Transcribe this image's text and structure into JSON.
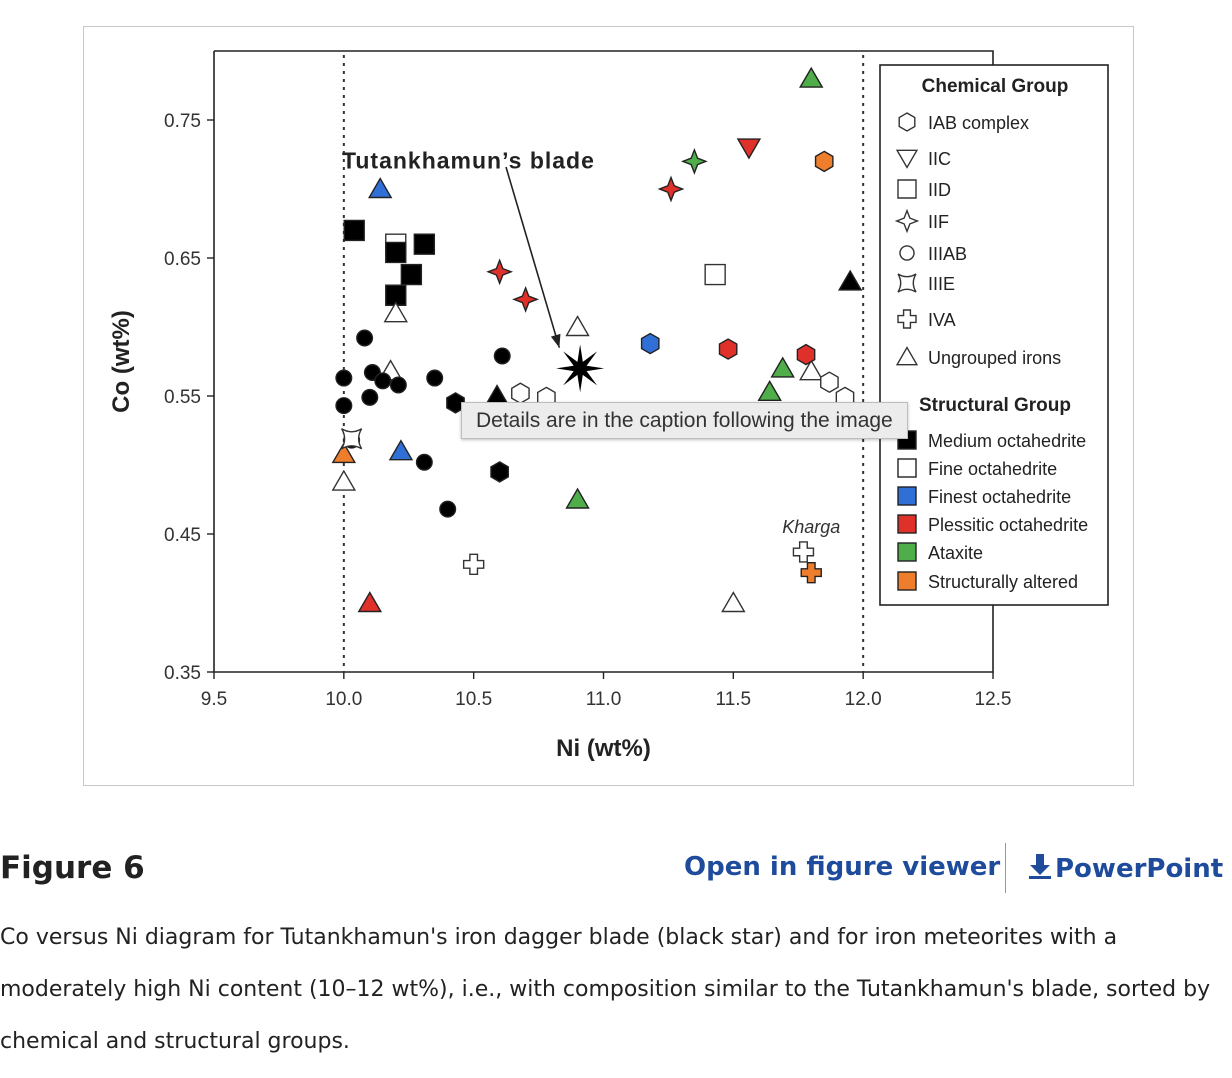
{
  "figure": {
    "label": "Figure 6",
    "open_viewer": "Open in figure viewer",
    "powerpoint": "PowerPoint",
    "caption": "Co versus Ni diagram for Tutankhamun's iron dagger blade (black star) and for iron meteorites with a moderately high Ni content (10–12 wt%), i.e., with composition similar to the Tutankhamun's blade, sorted by chemical and structural groups.",
    "tooltip": "Details are in the caption following the image"
  },
  "colors": {
    "medium": "#000000",
    "fine": "#ffffff",
    "finest": "#2f6fd6",
    "plessitic": "#e0302a",
    "ataxite": "#4fae4a",
    "altered": "#ee7d2c",
    "link": "#1e4b9b"
  },
  "chart_data": {
    "type": "scatter",
    "xlabel": "Ni (wt%)",
    "ylabel": "Co (wt%)",
    "xlim": [
      9.5,
      12.5
    ],
    "ylim": [
      0.35,
      0.8
    ],
    "xticks": [
      "9.5",
      "10.0",
      "10.5",
      "11.0",
      "11.5",
      "12.0",
      "12.5"
    ],
    "yticks": [
      "0.35",
      "0.45",
      "0.55",
      "0.65",
      "0.75"
    ],
    "vlines": [
      10.0,
      12.0
    ],
    "annotations": [
      {
        "text": "Tutankhamun’s blade",
        "x": 10.48,
        "y": 0.72,
        "arrow_to": [
          10.83,
          0.585
        ]
      },
      {
        "text": "Kharga",
        "x": 11.8,
        "y": 0.455
      }
    ],
    "legend_placement": "right",
    "legend_chemical_title": "Chemical Group",
    "legend_chemical": [
      {
        "label": "IAB complex",
        "shape": "hexagon"
      },
      {
        "label": "IIC",
        "shape": "triangle-down"
      },
      {
        "label": "IID",
        "shape": "square"
      },
      {
        "label": "IIF",
        "shape": "star4"
      },
      {
        "label": "IIIAB",
        "shape": "circle"
      },
      {
        "label": "IIIE",
        "shape": "iiie"
      },
      {
        "label": "IVA",
        "shape": "cross"
      },
      {
        "label": "Ungrouped irons",
        "shape": "triangle-up"
      }
    ],
    "legend_structural_title": "Structural Group",
    "legend_structural": [
      {
        "label": "Medium octahedrite",
        "group": "medium"
      },
      {
        "label": "Fine octahedrite",
        "group": "fine"
      },
      {
        "label": "Finest octahedrite",
        "group": "finest"
      },
      {
        "label": "Plessitic octahedrite",
        "group": "plessitic"
      },
      {
        "label": "Ataxite",
        "group": "ataxite"
      },
      {
        "label": "Structurally altered",
        "group": "altered"
      }
    ],
    "blade": {
      "x": 10.91,
      "y": 0.57
    },
    "points": [
      {
        "x": 10.04,
        "y": 0.67,
        "shape": "square",
        "group": "medium"
      },
      {
        "x": 10.2,
        "y": 0.66,
        "shape": "square",
        "group": "fine"
      },
      {
        "x": 10.31,
        "y": 0.66,
        "shape": "square",
        "group": "medium"
      },
      {
        "x": 10.2,
        "y": 0.654,
        "shape": "square",
        "group": "medium"
      },
      {
        "x": 10.26,
        "y": 0.638,
        "shape": "square",
        "group": "medium"
      },
      {
        "x": 10.2,
        "y": 0.623,
        "shape": "square",
        "group": "medium"
      },
      {
        "x": 11.43,
        "y": 0.638,
        "shape": "square",
        "group": "fine"
      },
      {
        "x": 10.14,
        "y": 0.7,
        "shape": "triangle-up",
        "group": "finest"
      },
      {
        "x": 10.2,
        "y": 0.61,
        "shape": "triangle-up",
        "group": "fine"
      },
      {
        "x": 10.18,
        "y": 0.568,
        "shape": "triangle-up",
        "group": "fine"
      },
      {
        "x": 10.9,
        "y": 0.6,
        "shape": "triangle-up",
        "group": "fine"
      },
      {
        "x": 11.8,
        "y": 0.78,
        "shape": "triangle-up",
        "group": "ataxite"
      },
      {
        "x": 11.95,
        "y": 0.633,
        "shape": "triangle-up",
        "group": "medium"
      },
      {
        "x": 10.59,
        "y": 0.55,
        "shape": "triangle-up",
        "group": "medium"
      },
      {
        "x": 10.22,
        "y": 0.51,
        "shape": "triangle-up",
        "group": "finest"
      },
      {
        "x": 10.0,
        "y": 0.488,
        "shape": "triangle-up",
        "group": "fine"
      },
      {
        "x": 10.0,
        "y": 0.508,
        "shape": "triangle-up",
        "group": "altered"
      },
      {
        "x": 10.9,
        "y": 0.475,
        "shape": "triangle-up",
        "group": "ataxite"
      },
      {
        "x": 10.1,
        "y": 0.4,
        "shape": "triangle-up",
        "group": "plessitic"
      },
      {
        "x": 11.5,
        "y": 0.4,
        "shape": "triangle-up",
        "group": "fine"
      },
      {
        "x": 11.69,
        "y": 0.57,
        "shape": "triangle-up",
        "group": "ataxite"
      },
      {
        "x": 11.64,
        "y": 0.553,
        "shape": "triangle-up",
        "group": "ataxite"
      },
      {
        "x": 11.8,
        "y": 0.568,
        "shape": "triangle-up",
        "group": "fine"
      },
      {
        "x": 11.56,
        "y": 0.73,
        "shape": "triangle-down",
        "group": "plessitic"
      },
      {
        "x": 11.85,
        "y": 0.72,
        "shape": "hexagon",
        "group": "altered"
      },
      {
        "x": 11.18,
        "y": 0.588,
        "shape": "hexagon",
        "group": "finest"
      },
      {
        "x": 11.48,
        "y": 0.584,
        "shape": "hexagon",
        "group": "plessitic"
      },
      {
        "x": 11.78,
        "y": 0.58,
        "shape": "hexagon",
        "group": "plessitic"
      },
      {
        "x": 11.87,
        "y": 0.56,
        "shape": "hexagon",
        "group": "fine"
      },
      {
        "x": 11.93,
        "y": 0.549,
        "shape": "hexagon",
        "group": "fine"
      },
      {
        "x": 10.68,
        "y": 0.552,
        "shape": "hexagon",
        "group": "fine"
      },
      {
        "x": 10.78,
        "y": 0.549,
        "shape": "hexagon",
        "group": "fine"
      },
      {
        "x": 10.43,
        "y": 0.545,
        "shape": "hexagon",
        "group": "medium"
      },
      {
        "x": 10.6,
        "y": 0.495,
        "shape": "hexagon",
        "group": "medium"
      },
      {
        "x": 10.6,
        "y": 0.64,
        "shape": "star4",
        "group": "plessitic"
      },
      {
        "x": 10.7,
        "y": 0.62,
        "shape": "star4",
        "group": "plessitic"
      },
      {
        "x": 11.26,
        "y": 0.7,
        "shape": "star4",
        "group": "plessitic"
      },
      {
        "x": 11.35,
        "y": 0.72,
        "shape": "star4",
        "group": "ataxite"
      },
      {
        "x": 10.08,
        "y": 0.592,
        "shape": "circle",
        "group": "medium"
      },
      {
        "x": 10.0,
        "y": 0.563,
        "shape": "circle",
        "group": "medium"
      },
      {
        "x": 10.11,
        "y": 0.567,
        "shape": "circle",
        "group": "medium"
      },
      {
        "x": 10.15,
        "y": 0.561,
        "shape": "circle",
        "group": "medium"
      },
      {
        "x": 10.21,
        "y": 0.558,
        "shape": "circle",
        "group": "medium"
      },
      {
        "x": 10.1,
        "y": 0.549,
        "shape": "circle",
        "group": "medium"
      },
      {
        "x": 10.0,
        "y": 0.543,
        "shape": "circle",
        "group": "medium"
      },
      {
        "x": 10.35,
        "y": 0.563,
        "shape": "circle",
        "group": "medium"
      },
      {
        "x": 10.61,
        "y": 0.579,
        "shape": "circle",
        "group": "medium"
      },
      {
        "x": 10.31,
        "y": 0.502,
        "shape": "circle",
        "group": "medium"
      },
      {
        "x": 10.4,
        "y": 0.468,
        "shape": "circle",
        "group": "medium"
      },
      {
        "x": 10.03,
        "y": 0.518,
        "shape": "circle",
        "group": "medium"
      },
      {
        "x": 10.03,
        "y": 0.519,
        "shape": "iiie",
        "group": "fine"
      },
      {
        "x": 10.5,
        "y": 0.428,
        "shape": "cross",
        "group": "fine"
      },
      {
        "x": 11.77,
        "y": 0.437,
        "shape": "cross",
        "group": "fine"
      },
      {
        "x": 11.8,
        "y": 0.422,
        "shape": "cross",
        "group": "altered"
      }
    ]
  }
}
